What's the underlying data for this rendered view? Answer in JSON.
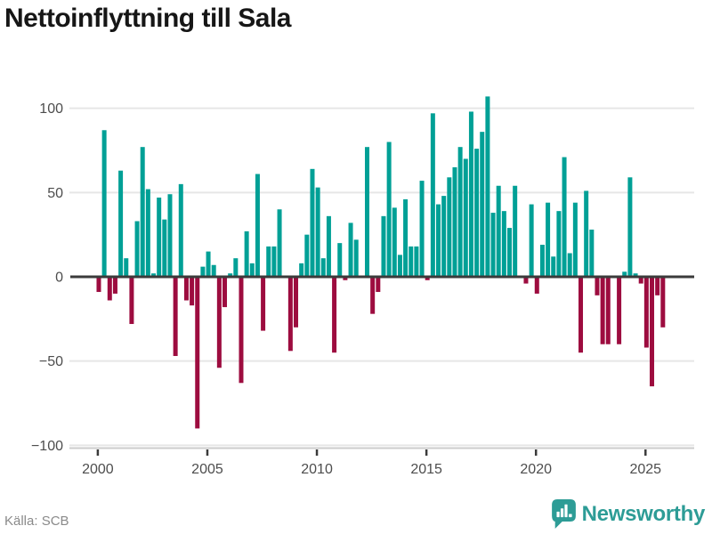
{
  "chart": {
    "title": "Nettoinflyttning till Sala",
    "source": "Källa: SCB"
  },
  "brand": {
    "name": "Newsworthy"
  },
  "chart_data": {
    "type": "bar",
    "title": "Nettoinflyttning till Sala",
    "source": "Källa: SCB",
    "frequency": "quarterly",
    "start_period": "2000 Q1",
    "end_period": "2025 Q4",
    "values": [
      -9,
      87,
      -14,
      -10,
      63,
      11,
      -28,
      33,
      77,
      52,
      2,
      47,
      34,
      49,
      -47,
      55,
      -14,
      -17,
      -90,
      6,
      15,
      7,
      -54,
      -18,
      2,
      11,
      -63,
      27,
      8,
      61,
      -32,
      18,
      18,
      40,
      0,
      -44,
      -30,
      8,
      25,
      64,
      53,
      11,
      36,
      -45,
      20,
      -2,
      32,
      22,
      0,
      77,
      -22,
      -9,
      36,
      80,
      41,
      13,
      46,
      18,
      18,
      57,
      -2,
      97,
      43,
      48,
      59,
      65,
      77,
      70,
      98,
      76,
      86,
      107,
      38,
      54,
      39,
      29,
      54,
      0,
      -4,
      43,
      -10,
      19,
      44,
      12,
      39,
      71,
      14,
      44,
      -45,
      51,
      28,
      -11,
      -40,
      -40,
      0,
      -40,
      3,
      59,
      2,
      -4,
      -42,
      -65,
      -11,
      -30
    ],
    "x_tick_years": [
      2000,
      2005,
      2010,
      2015,
      2020,
      2025
    ],
    "y_tick_labels": [
      "100",
      "50",
      "0",
      "−50",
      "−100"
    ],
    "y_tick_values": [
      100,
      50,
      0,
      -50,
      -100
    ],
    "ylim": [
      -100,
      110
    ],
    "grid": "horizontal",
    "legend": "none",
    "colors": {
      "positive": "#00a096",
      "negative": "#9d0c3f",
      "gridline": "#e6e6e6",
      "zero_line": "#3b3b3b",
      "axis_line": "#cccccc",
      "tick_text": "#4d4d4d",
      "brand_teal": "#2d9c96"
    }
  }
}
